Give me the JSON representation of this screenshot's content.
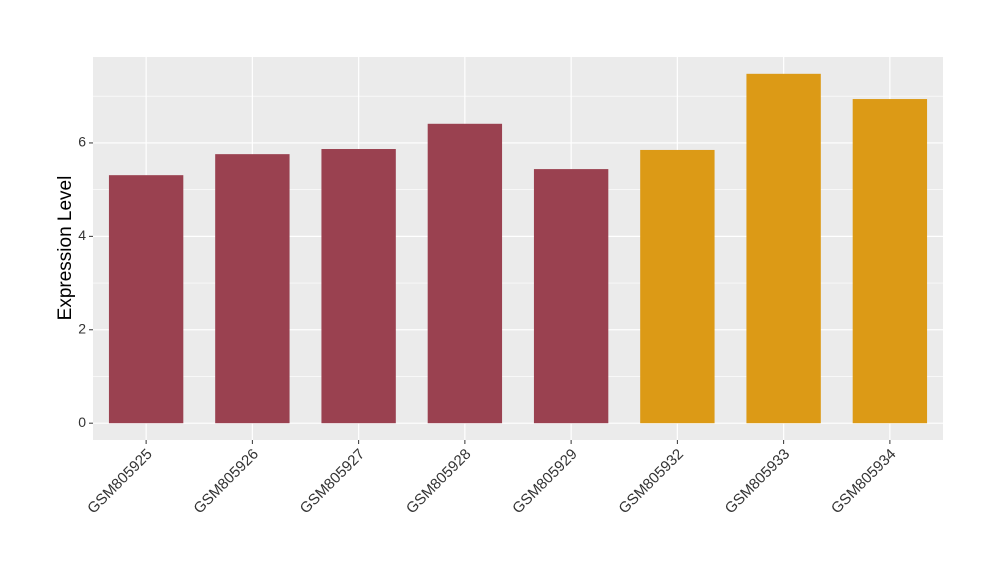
{
  "chart_data": {
    "type": "bar",
    "y_label": "Expression Level",
    "categories": [
      "GSM805925",
      "GSM805926",
      "GSM805927",
      "GSM805928",
      "GSM805929",
      "GSM805932",
      "GSM805933",
      "GSM805934"
    ],
    "values": [
      5.31,
      5.76,
      5.87,
      6.41,
      5.44,
      5.85,
      7.48,
      6.94
    ],
    "colors": [
      "#9a4150",
      "#9a4150",
      "#9a4150",
      "#9a4150",
      "#9a4150",
      "#dc9a16",
      "#dc9a16",
      "#dc9a16"
    ],
    "ylim": [
      -0.36,
      7.84
    ],
    "yticks": [
      0,
      2,
      4,
      6
    ],
    "grid": true
  }
}
